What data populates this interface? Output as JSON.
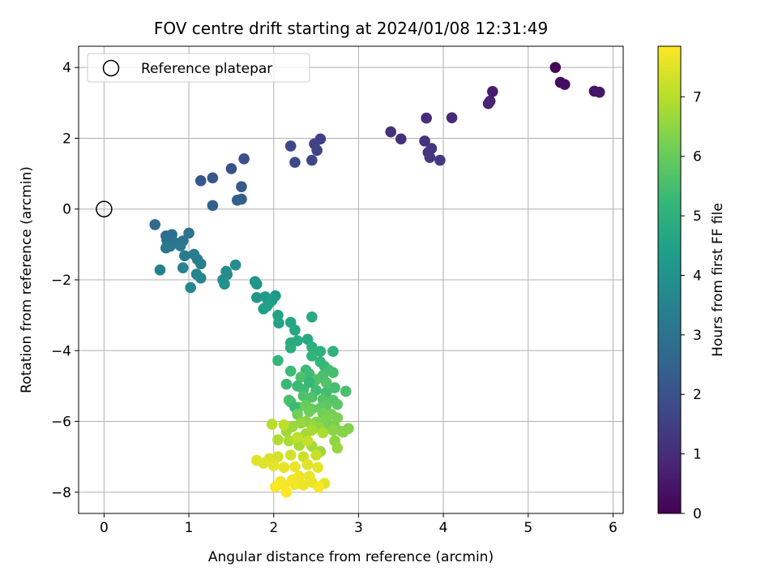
{
  "chart_data": {
    "type": "scatter",
    "title": "FOV centre drift starting at 2024/01/08 12:31:49",
    "xlabel": "Angular distance from reference (arcmin)",
    "ylabel": "Rotation from reference (arcmin)",
    "xlim": [
      -0.3,
      6.12
    ],
    "ylim": [
      -8.6,
      4.6
    ],
    "xticks": [
      0,
      1,
      2,
      3,
      4,
      5,
      6
    ],
    "yticks": [
      -8,
      -6,
      -4,
      -2,
      0,
      2,
      4
    ],
    "grid": true,
    "legend": {
      "placement": "top-left",
      "entries": [
        "Reference platepar"
      ]
    },
    "reference_point": {
      "x": 0,
      "y": 0
    },
    "colorbar": {
      "label": "Hours from first FF file",
      "range": [
        0,
        7.85
      ],
      "ticks": [
        0,
        1,
        2,
        3,
        4,
        5,
        6,
        7
      ],
      "colormap": "viridis"
    },
    "colormap_stops": [
      "#440154",
      "#482878",
      "#3e4989",
      "#31688e",
      "#26828e",
      "#1f9e89",
      "#35b779",
      "#6ece58",
      "#b5de2b",
      "#fde725"
    ],
    "points": [
      [
        5.32,
        4.0,
        0.1
      ],
      [
        5.38,
        3.58,
        0.2
      ],
      [
        5.43,
        3.52,
        0.3
      ],
      [
        5.78,
        3.33,
        0.4
      ],
      [
        5.84,
        3.3,
        0.5
      ],
      [
        4.58,
        3.32,
        0.6
      ],
      [
        4.55,
        3.05,
        0.7
      ],
      [
        4.53,
        2.98,
        0.8
      ],
      [
        4.1,
        2.58,
        0.9
      ],
      [
        3.8,
        2.57,
        1.0
      ],
      [
        3.38,
        2.18,
        1.05
      ],
      [
        3.5,
        1.98,
        1.1
      ],
      [
        3.78,
        1.92,
        1.15
      ],
      [
        3.82,
        1.6,
        1.2
      ],
      [
        3.86,
        1.71,
        1.25
      ],
      [
        3.84,
        1.46,
        1.3
      ],
      [
        3.96,
        1.38,
        1.35
      ],
      [
        2.55,
        1.98,
        1.5
      ],
      [
        2.48,
        1.84,
        1.55
      ],
      [
        2.51,
        1.66,
        1.6
      ],
      [
        2.45,
        1.38,
        1.65
      ],
      [
        2.2,
        1.78,
        1.7
      ],
      [
        2.25,
        1.32,
        1.8
      ],
      [
        1.65,
        1.42,
        1.9
      ],
      [
        1.5,
        1.14,
        2.0
      ],
      [
        1.28,
        0.88,
        2.1
      ],
      [
        1.14,
        0.8,
        2.15
      ],
      [
        1.62,
        0.63,
        2.2
      ],
      [
        1.62,
        0.28,
        2.3
      ],
      [
        1.57,
        0.25,
        2.35
      ],
      [
        1.28,
        0.1,
        2.4
      ],
      [
        0.6,
        -0.44,
        2.7
      ],
      [
        0.73,
        -0.76,
        2.8
      ],
      [
        0.8,
        -0.72,
        2.85
      ],
      [
        0.74,
        -0.88,
        2.9
      ],
      [
        0.85,
        -0.96,
        2.95
      ],
      [
        1.0,
        -0.68,
        3.0
      ],
      [
        0.93,
        -0.9,
        3.05
      ],
      [
        0.78,
        -1.05,
        3.1
      ],
      [
        0.73,
        -1.1,
        3.15
      ],
      [
        0.9,
        -1.04,
        3.2
      ],
      [
        0.95,
        -1.32,
        3.25
      ],
      [
        1.06,
        -1.28,
        3.3
      ],
      [
        1.1,
        -1.42,
        3.35
      ],
      [
        1.14,
        -1.55,
        3.4
      ],
      [
        0.66,
        -1.72,
        3.45
      ],
      [
        0.93,
        -1.66,
        3.5
      ],
      [
        1.09,
        -1.84,
        3.55
      ],
      [
        1.14,
        -1.95,
        3.6
      ],
      [
        1.02,
        -2.22,
        3.65
      ],
      [
        1.44,
        -1.76,
        3.75
      ],
      [
        1.55,
        -1.58,
        3.8
      ],
      [
        1.45,
        -1.85,
        3.85
      ],
      [
        1.4,
        -2.0,
        3.9
      ],
      [
        1.42,
        -2.12,
        3.95
      ],
      [
        1.78,
        -2.05,
        4.05
      ],
      [
        1.8,
        -2.12,
        4.1
      ],
      [
        1.8,
        -2.5,
        4.15
      ],
      [
        1.9,
        -2.48,
        4.2
      ],
      [
        2.02,
        -2.45,
        4.25
      ],
      [
        1.98,
        -2.58,
        4.3
      ],
      [
        1.95,
        -2.65,
        4.35
      ],
      [
        1.88,
        -2.82,
        4.4
      ],
      [
        1.92,
        -2.75,
        4.45
      ],
      [
        2.05,
        -3.0,
        4.5
      ],
      [
        2.06,
        -3.22,
        4.55
      ],
      [
        2.2,
        -3.2,
        4.6
      ],
      [
        2.25,
        -3.42,
        4.65
      ],
      [
        2.45,
        -3.05,
        4.7
      ],
      [
        2.4,
        -3.68,
        4.75
      ],
      [
        2.2,
        -3.78,
        4.8
      ],
      [
        2.28,
        -3.72,
        4.85
      ],
      [
        2.2,
        -3.92,
        4.9
      ],
      [
        2.45,
        -3.9,
        4.95
      ],
      [
        2.55,
        -4.02,
        5.0
      ],
      [
        2.7,
        -4.02,
        5.05
      ],
      [
        2.45,
        -4.15,
        5.1
      ],
      [
        2.55,
        -4.32,
        5.15
      ],
      [
        2.05,
        -4.28,
        5.2
      ],
      [
        2.6,
        -4.45,
        5.25
      ],
      [
        2.38,
        -4.55,
        5.3
      ],
      [
        2.2,
        -4.58,
        5.35
      ],
      [
        2.42,
        -4.66,
        5.4
      ],
      [
        2.65,
        -4.55,
        5.45
      ],
      [
        2.7,
        -4.62,
        5.5
      ],
      [
        2.58,
        -4.7,
        5.55
      ],
      [
        2.32,
        -4.75,
        5.6
      ],
      [
        2.5,
        -4.82,
        5.65
      ],
      [
        2.62,
        -4.9,
        5.7
      ],
      [
        2.42,
        -4.9,
        5.25
      ],
      [
        2.28,
        -5.0,
        5.3
      ],
      [
        2.35,
        -5.1,
        5.35
      ],
      [
        2.5,
        -5.12,
        5.4
      ],
      [
        2.62,
        -5.18,
        5.45
      ],
      [
        2.72,
        -5.05,
        5.5
      ],
      [
        2.85,
        -5.15,
        5.55
      ],
      [
        2.15,
        -4.95,
        5.3
      ],
      [
        2.35,
        -5.28,
        5.6
      ],
      [
        2.45,
        -5.32,
        5.65
      ],
      [
        2.58,
        -5.38,
        5.7
      ],
      [
        2.7,
        -5.4,
        5.75
      ],
      [
        2.75,
        -5.52,
        5.8
      ],
      [
        2.2,
        -5.45,
        5.5
      ],
      [
        2.18,
        -5.4,
        5.55
      ],
      [
        2.62,
        -5.55,
        5.85
      ],
      [
        2.55,
        -5.62,
        5.9
      ],
      [
        2.45,
        -5.65,
        5.95
      ],
      [
        2.38,
        -5.55,
        6.0
      ],
      [
        2.3,
        -5.6,
        6.05
      ],
      [
        2.25,
        -5.6,
        5.3
      ],
      [
        2.42,
        -5.72,
        6.1
      ],
      [
        2.58,
        -5.78,
        6.15
      ],
      [
        2.68,
        -5.8,
        6.2
      ],
      [
        2.75,
        -5.9,
        6.25
      ],
      [
        2.62,
        -5.95,
        6.3
      ],
      [
        2.5,
        -6.02,
        6.35
      ],
      [
        2.38,
        -6.0,
        6.4
      ],
      [
        2.28,
        -5.8,
        6.1
      ],
      [
        2.65,
        -6.1,
        6.2
      ],
      [
        2.72,
        -6.15,
        6.25
      ],
      [
        2.8,
        -6.28,
        6.3
      ],
      [
        2.88,
        -6.2,
        6.35
      ],
      [
        2.82,
        -6.3,
        6.4
      ],
      [
        2.7,
        -6.25,
        6.45
      ],
      [
        2.55,
        -6.2,
        6.5
      ],
      [
        2.45,
        -6.1,
        6.55
      ],
      [
        2.32,
        -6.05,
        6.6
      ],
      [
        2.22,
        -6.15,
        6.65
      ],
      [
        2.15,
        -6.28,
        6.7
      ],
      [
        2.38,
        -6.35,
        6.75
      ],
      [
        2.45,
        -6.25,
        6.8
      ],
      [
        2.58,
        -6.32,
        6.85
      ],
      [
        2.72,
        -6.55,
        6.5
      ],
      [
        2.75,
        -6.75,
        6.6
      ],
      [
        2.55,
        -6.85,
        6.7
      ],
      [
        2.45,
        -6.7,
        6.75
      ],
      [
        2.3,
        -6.68,
        6.8
      ],
      [
        2.18,
        -6.55,
        6.85
      ],
      [
        2.05,
        -6.52,
        6.9
      ],
      [
        1.98,
        -6.08,
        7.0
      ],
      [
        2.12,
        -6.1,
        7.05
      ],
      [
        2.28,
        -6.45,
        7.1
      ],
      [
        2.4,
        -6.55,
        7.15
      ],
      [
        2.5,
        -6.95,
        7.2
      ],
      [
        2.35,
        -7.0,
        7.25
      ],
      [
        2.2,
        -6.95,
        7.3
      ],
      [
        2.05,
        -7.0,
        7.35
      ],
      [
        1.95,
        -7.05,
        7.4
      ],
      [
        1.88,
        -7.18,
        7.45
      ],
      [
        1.8,
        -7.1,
        7.5
      ],
      [
        2.0,
        -7.25,
        7.55
      ],
      [
        2.12,
        -7.3,
        7.6
      ],
      [
        2.25,
        -7.28,
        7.65
      ],
      [
        2.4,
        -7.22,
        7.5
      ],
      [
        2.52,
        -7.3,
        7.55
      ],
      [
        2.42,
        -7.55,
        7.6
      ],
      [
        2.3,
        -7.55,
        7.65
      ],
      [
        2.22,
        -7.65,
        7.7
      ],
      [
        2.08,
        -7.7,
        7.75
      ],
      [
        2.02,
        -7.85,
        7.8
      ],
      [
        2.12,
        -7.8,
        7.75
      ],
      [
        2.25,
        -7.78,
        7.7
      ],
      [
        2.35,
        -7.8,
        7.65
      ],
      [
        2.45,
        -7.72,
        7.6
      ],
      [
        2.6,
        -7.75,
        7.55
      ],
      [
        2.53,
        -7.85,
        7.8
      ],
      [
        2.15,
        -8.0,
        7.85
      ]
    ]
  }
}
